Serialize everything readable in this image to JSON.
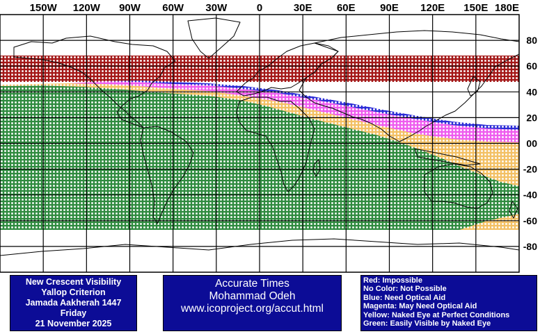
{
  "map": {
    "lon_labels": [
      "150W",
      "120W",
      "90W",
      "60W",
      "30W",
      "0",
      "30E",
      "60E",
      "90E",
      "120E",
      "150E",
      "180E"
    ],
    "lat_labels": [
      "80",
      "60",
      "40",
      "20",
      "00",
      "-20",
      "-40",
      "-60",
      "-80"
    ],
    "zone_colors": {
      "red": "#a31616",
      "magenta": "#ee5cee",
      "blue": "#2b2bd6",
      "yellow": "#f8cc78",
      "green": "#2e8a3e",
      "coast": "#000000"
    }
  },
  "info_panel": {
    "lines": [
      "New Crescent Visibility",
      "Yallop Criterion",
      "Jamada Aakherah 1447",
      "Friday",
      "21 November 2025"
    ]
  },
  "credit_panel": {
    "lines": [
      "Accurate Times",
      "Mohammad Odeh",
      "www.icoproject.org/accut.html"
    ]
  },
  "legend": {
    "lines": [
      "Red: Impossible",
      "No Color: Not Possible",
      "Blue: Need Optical Aid",
      "Magenta: May Need Optical Aid",
      "Yellow: Naked Eye at Perfect Conditions",
      "Green: Easily Visible by Naked Eye"
    ]
  }
}
